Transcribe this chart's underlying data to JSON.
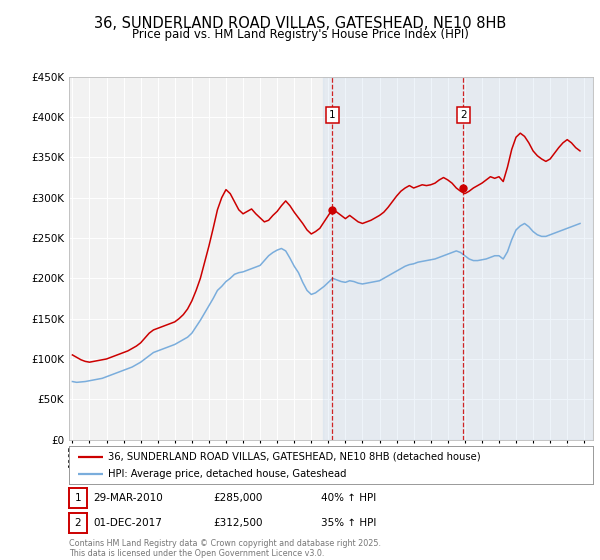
{
  "title": "36, SUNDERLAND ROAD VILLAS, GATESHEAD, NE10 8HB",
  "subtitle": "Price paid vs. HM Land Registry's House Price Index (HPI)",
  "title_fontsize": 10.5,
  "subtitle_fontsize": 8.5,
  "background_color": "#ffffff",
  "plot_bg_color": "#f2f2f2",
  "grid_color": "#ffffff",
  "ylim": [
    0,
    450000
  ],
  "xlim_start": 1994.8,
  "xlim_end": 2025.5,
  "yticks": [
    0,
    50000,
    100000,
    150000,
    200000,
    250000,
    300000,
    350000,
    400000,
    450000
  ],
  "red_line_color": "#cc0000",
  "blue_line_color": "#7aaddc",
  "marker1_date": 2010.24,
  "marker1_value": 285000,
  "marker2_date": 2017.92,
  "marker2_value": 312500,
  "vline1_x": 2010.24,
  "vline2_x": 2017.92,
  "shade_start": 2009.7,
  "shade_end": 2025.5,
  "legend_label_red": "36, SUNDERLAND ROAD VILLAS, GATESHEAD, NE10 8HB (detached house)",
  "legend_label_blue": "HPI: Average price, detached house, Gateshead",
  "table_row1": [
    "1",
    "29-MAR-2010",
    "£285,000",
    "40% ↑ HPI"
  ],
  "table_row2": [
    "2",
    "01-DEC-2017",
    "£312,500",
    "35% ↑ HPI"
  ],
  "footer": "Contains HM Land Registry data © Crown copyright and database right 2025.\nThis data is licensed under the Open Government Licence v3.0.",
  "hpi_x": [
    1995.0,
    1995.25,
    1995.5,
    1995.75,
    1996.0,
    1996.25,
    1996.5,
    1996.75,
    1997.0,
    1997.25,
    1997.5,
    1997.75,
    1998.0,
    1998.25,
    1998.5,
    1998.75,
    1999.0,
    1999.25,
    1999.5,
    1999.75,
    2000.0,
    2000.25,
    2000.5,
    2000.75,
    2001.0,
    2001.25,
    2001.5,
    2001.75,
    2002.0,
    2002.25,
    2002.5,
    2002.75,
    2003.0,
    2003.25,
    2003.5,
    2003.75,
    2004.0,
    2004.25,
    2004.5,
    2004.75,
    2005.0,
    2005.25,
    2005.5,
    2005.75,
    2006.0,
    2006.25,
    2006.5,
    2006.75,
    2007.0,
    2007.25,
    2007.5,
    2007.75,
    2008.0,
    2008.25,
    2008.5,
    2008.75,
    2009.0,
    2009.25,
    2009.5,
    2009.75,
    2010.0,
    2010.25,
    2010.5,
    2010.75,
    2011.0,
    2011.25,
    2011.5,
    2011.75,
    2012.0,
    2012.25,
    2012.5,
    2012.75,
    2013.0,
    2013.25,
    2013.5,
    2013.75,
    2014.0,
    2014.25,
    2014.5,
    2014.75,
    2015.0,
    2015.25,
    2015.5,
    2015.75,
    2016.0,
    2016.25,
    2016.5,
    2016.75,
    2017.0,
    2017.25,
    2017.5,
    2017.75,
    2018.0,
    2018.25,
    2018.5,
    2018.75,
    2019.0,
    2019.25,
    2019.5,
    2019.75,
    2020.0,
    2020.25,
    2020.5,
    2020.75,
    2021.0,
    2021.25,
    2021.5,
    2021.75,
    2022.0,
    2022.25,
    2022.5,
    2022.75,
    2023.0,
    2023.25,
    2023.5,
    2023.75,
    2024.0,
    2024.25,
    2024.5,
    2024.75
  ],
  "hpi_y": [
    72000,
    71000,
    71500,
    72000,
    73000,
    74000,
    75000,
    76000,
    78000,
    80000,
    82000,
    84000,
    86000,
    88000,
    90000,
    93000,
    96000,
    100000,
    104000,
    108000,
    110000,
    112000,
    114000,
    116000,
    118000,
    121000,
    124000,
    127000,
    132000,
    140000,
    148000,
    157000,
    166000,
    175000,
    185000,
    190000,
    196000,
    200000,
    205000,
    207000,
    208000,
    210000,
    212000,
    214000,
    216000,
    222000,
    228000,
    232000,
    235000,
    237000,
    234000,
    225000,
    215000,
    207000,
    195000,
    185000,
    180000,
    182000,
    186000,
    190000,
    195000,
    200000,
    198000,
    196000,
    195000,
    197000,
    196000,
    194000,
    193000,
    194000,
    195000,
    196000,
    197000,
    200000,
    203000,
    206000,
    209000,
    212000,
    215000,
    217000,
    218000,
    220000,
    221000,
    222000,
    223000,
    224000,
    226000,
    228000,
    230000,
    232000,
    234000,
    232000,
    228000,
    224000,
    222000,
    222000,
    223000,
    224000,
    226000,
    228000,
    228000,
    224000,
    233000,
    248000,
    260000,
    265000,
    268000,
    264000,
    258000,
    254000,
    252000,
    252000,
    254000,
    256000,
    258000,
    260000,
    262000,
    264000,
    266000,
    268000
  ],
  "red_x": [
    1995.0,
    1995.25,
    1995.5,
    1995.75,
    1996.0,
    1996.25,
    1996.5,
    1996.75,
    1997.0,
    1997.25,
    1997.5,
    1997.75,
    1998.0,
    1998.25,
    1998.5,
    1998.75,
    1999.0,
    1999.25,
    1999.5,
    1999.75,
    2000.0,
    2000.25,
    2000.5,
    2000.75,
    2001.0,
    2001.25,
    2001.5,
    2001.75,
    2002.0,
    2002.25,
    2002.5,
    2002.75,
    2003.0,
    2003.25,
    2003.5,
    2003.75,
    2004.0,
    2004.25,
    2004.5,
    2004.75,
    2005.0,
    2005.25,
    2005.5,
    2005.75,
    2006.0,
    2006.25,
    2006.5,
    2006.75,
    2007.0,
    2007.25,
    2007.5,
    2007.75,
    2008.0,
    2008.25,
    2008.5,
    2008.75,
    2009.0,
    2009.25,
    2009.5,
    2009.75,
    2010.0,
    2010.25,
    2010.5,
    2010.75,
    2011.0,
    2011.25,
    2011.5,
    2011.75,
    2012.0,
    2012.25,
    2012.5,
    2012.75,
    2013.0,
    2013.25,
    2013.5,
    2013.75,
    2014.0,
    2014.25,
    2014.5,
    2014.75,
    2015.0,
    2015.25,
    2015.5,
    2015.75,
    2016.0,
    2016.25,
    2016.5,
    2016.75,
    2017.0,
    2017.25,
    2017.5,
    2017.75,
    2018.0,
    2018.25,
    2018.5,
    2018.75,
    2019.0,
    2019.25,
    2019.5,
    2019.75,
    2020.0,
    2020.25,
    2020.5,
    2020.75,
    2021.0,
    2021.25,
    2021.5,
    2021.75,
    2022.0,
    2022.25,
    2022.5,
    2022.75,
    2023.0,
    2023.25,
    2023.5,
    2023.75,
    2024.0,
    2024.25,
    2024.5,
    2024.75
  ],
  "red_y": [
    105000,
    102000,
    99000,
    97000,
    96000,
    97000,
    98000,
    99000,
    100000,
    102000,
    104000,
    106000,
    108000,
    110000,
    113000,
    116000,
    120000,
    126000,
    132000,
    136000,
    138000,
    140000,
    142000,
    144000,
    146000,
    150000,
    155000,
    162000,
    172000,
    185000,
    200000,
    220000,
    240000,
    262000,
    285000,
    300000,
    310000,
    305000,
    295000,
    285000,
    280000,
    283000,
    286000,
    280000,
    275000,
    270000,
    272000,
    278000,
    283000,
    290000,
    296000,
    290000,
    282000,
    275000,
    268000,
    260000,
    255000,
    258000,
    262000,
    270000,
    278000,
    286000,
    282000,
    278000,
    274000,
    278000,
    274000,
    270000,
    268000,
    270000,
    272000,
    275000,
    278000,
    282000,
    288000,
    295000,
    302000,
    308000,
    312000,
    315000,
    312000,
    314000,
    316000,
    315000,
    316000,
    318000,
    322000,
    325000,
    322000,
    318000,
    312000,
    308000,
    305000,
    308000,
    312000,
    315000,
    318000,
    322000,
    326000,
    324000,
    326000,
    320000,
    338000,
    360000,
    375000,
    380000,
    376000,
    368000,
    358000,
    352000,
    348000,
    345000,
    348000,
    355000,
    362000,
    368000,
    372000,
    368000,
    362000,
    358000
  ]
}
